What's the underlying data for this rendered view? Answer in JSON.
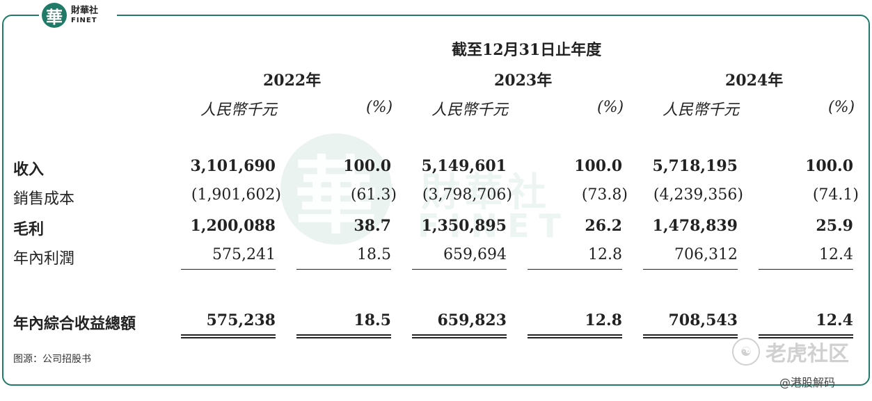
{
  "logo": {
    "cn": "財華社",
    "en": "FINET",
    "glyph": "華"
  },
  "watermark": {
    "glyph": "華",
    "cn": "財華社",
    "en": "FINET"
  },
  "header": {
    "period": "截至12月31日止年度",
    "years": [
      "2022年",
      "2023年",
      "2024年"
    ],
    "unit_label": "人民幣千元",
    "pct_label": "(%)"
  },
  "rows": [
    {
      "label": "收入",
      "bold": true,
      "values": [
        "3,101,690",
        "100.0",
        "5,149,601",
        "100.0",
        "5,718,195",
        "100.0"
      ]
    },
    {
      "label": "銷售成本",
      "bold": false,
      "values": [
        "(1,901,602)",
        "(61.3)",
        "(3,798,706)",
        "(73.8)",
        "(4,239,356)",
        "(74.1)"
      ]
    },
    {
      "label": "毛利",
      "bold": true,
      "values": [
        "1,200,088",
        "38.7",
        "1,350,895",
        "26.2",
        "1,478,839",
        "25.9"
      ]
    },
    {
      "label": "年內利潤",
      "bold": false,
      "values": [
        "575,241",
        "18.5",
        "659,694",
        "12.8",
        "706,312",
        "12.4"
      ]
    },
    {
      "label": "年內綜合收益總額",
      "bold": true,
      "values": [
        "575,238",
        "18.5",
        "659,823",
        "12.8",
        "708,543",
        "12.4"
      ]
    }
  ],
  "source": "图源：公司招股书",
  "corner_watermark": {
    "icon": "tiger-icon",
    "text": "老虎社区",
    "handle": "@港股解码"
  }
}
